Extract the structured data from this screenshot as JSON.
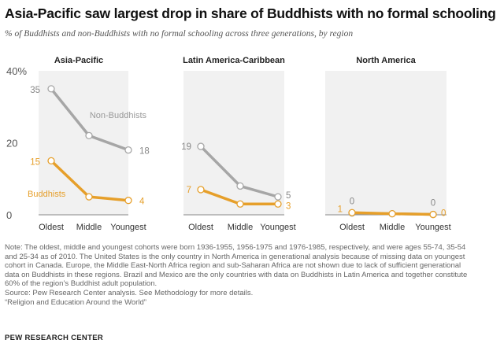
{
  "title": "Asia-Pacific saw largest drop in share of Buddhists with no formal schooling",
  "subtitle": "% of Buddhists and non-Buddhists with no formal schooling across three generations, by region",
  "chart_data": {
    "type": "line",
    "categories": [
      "Oldest",
      "Middle",
      "Youngest"
    ],
    "ylim": [
      0,
      40
    ],
    "yticks": [
      0,
      20,
      40
    ],
    "ytick_labels": [
      "0",
      "20",
      "40%"
    ],
    "panels": [
      {
        "title": "Asia-Pacific",
        "series": [
          {
            "name": "Non-Buddhists",
            "label": "Non-Buddhists",
            "values": [
              35,
              22,
              18
            ],
            "labels": [
              "35",
              "",
              "18"
            ]
          },
          {
            "name": "Buddhists",
            "label": "Buddhists",
            "values": [
              15,
              5,
              4
            ],
            "labels": [
              "15",
              "",
              "4"
            ]
          }
        ]
      },
      {
        "title": "Latin America-Caribbean",
        "series": [
          {
            "name": "Non-Buddhists",
            "values": [
              19,
              8,
              5
            ],
            "labels": [
              "19",
              "",
              "5"
            ]
          },
          {
            "name": "Buddhists",
            "values": [
              7,
              3,
              3
            ],
            "labels": [
              "7",
              "",
              "3"
            ]
          }
        ]
      },
      {
        "title": "North America",
        "series": [
          {
            "name": "Non-Buddhists",
            "values": [
              0.5,
              0.3,
              0.1
            ],
            "labels": [
              "0",
              "",
              "0"
            ]
          },
          {
            "name": "Buddhists",
            "values": [
              0.6,
              0.3,
              0.1
            ],
            "labels": [
              "1",
              "",
              "0"
            ]
          }
        ]
      }
    ],
    "colors": {
      "nonbuddhists": "#a6a6a6",
      "buddhists": "#e69f2a",
      "panel_bg": "#f1f1f1",
      "axis_text": "#333333"
    }
  },
  "notes": [
    "Note: The oldest, middle and youngest cohorts were born 1936-1955, 1956-1975 and 1976-1985, respectively, and were ages 55-74, 35-54",
    "and 25-34 as of 2010. The United States is the only country in North America in generational analysis because of missing data on youngest",
    "cohort in Canada. Europe, the Middle East-North Africa region and sub-Saharan Africa are not shown due to lack of sufficient generational",
    "data on Buddhists in these regions. Brazil and Mexico are the only countries with data on Buddhists in Latin America and together constitute",
    "60% of the region’s Buddhist adult population.",
    "Source: Pew Research Center analysis. See Methodology for more details.",
    "“Religion and Education Around the World”"
  ],
  "org": "PEW RESEARCH CENTER"
}
